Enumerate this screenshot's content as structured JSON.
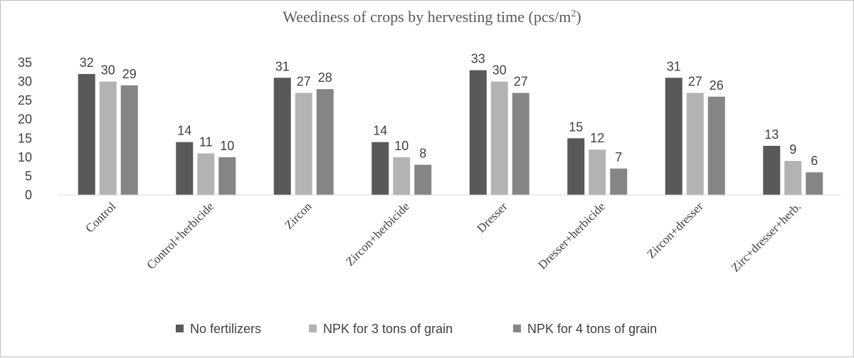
{
  "chart_data": {
    "type": "bar",
    "title": "Weediness of crops by hervesting time (pcs/m",
    "title_superscript": "2",
    "title_close": ")",
    "categories": [
      "Control",
      "Control+herbicide",
      "Zircon",
      "Zircon+herbicide",
      "Dresser",
      "Dresser+herbicide",
      "Zircon+dresser",
      "Zirc+dresser+herb."
    ],
    "series": [
      {
        "name": "No fertilizers",
        "color": "#595959",
        "values": [
          32,
          14,
          31,
          14,
          33,
          15,
          31,
          13
        ]
      },
      {
        "name": "NPK for 3 tons of grain",
        "color": "#b3b3b3",
        "values": [
          30,
          11,
          27,
          10,
          30,
          12,
          27,
          9
        ]
      },
      {
        "name": "NPK for 4 tons of grain",
        "color": "#858585",
        "values": [
          29,
          10,
          28,
          8,
          27,
          7,
          26,
          6
        ]
      }
    ],
    "ylim": [
      0,
      35
    ],
    "yticks": [
      0,
      5,
      10,
      15,
      20,
      25,
      30,
      35
    ],
    "xlabel": "",
    "ylabel": "",
    "grid": false,
    "legend_position": "bottom",
    "data_labels": true
  }
}
